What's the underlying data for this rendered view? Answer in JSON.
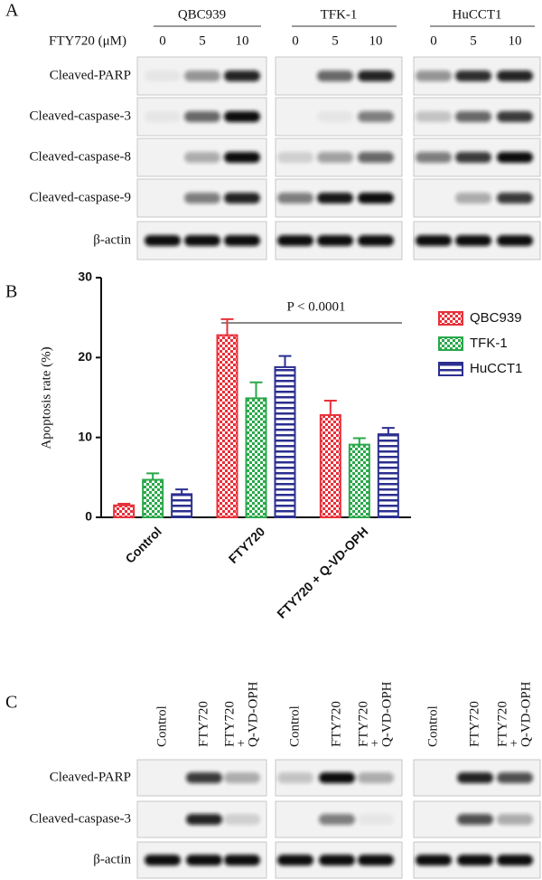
{
  "panel_a": {
    "label": "A",
    "cell_lines": [
      "QBC939",
      "TFK-1",
      "HuCCT1"
    ],
    "dose_label": "FTY720 (μM)",
    "doses": [
      "0",
      "5",
      "10"
    ],
    "rows": [
      "Cleaved-PARP",
      "Cleaved-caspase-3",
      "Cleaved-caspase-8",
      "Cleaved-caspase-9",
      "β-actin"
    ]
  },
  "chart_data": {
    "type": "bar",
    "panel_label": "B",
    "y_label": "Apoptosis rate (%)",
    "annotation": "P < 0.0001",
    "categories": [
      "Control",
      "FTY720",
      "FTY720 + Q-VD-OPH"
    ],
    "series": [
      {
        "name": "QBC939",
        "color": "#e8303a",
        "pattern": "checker",
        "values": [
          1.5,
          22.8,
          12.8
        ],
        "errors": [
          0.2,
          2.0,
          1.8
        ]
      },
      {
        "name": "TFK-1",
        "color": "#2aa84a",
        "pattern": "checker",
        "values": [
          4.7,
          14.9,
          9.1
        ],
        "errors": [
          0.8,
          2.0,
          0.8
        ]
      },
      {
        "name": "HuCCT1",
        "color": "#2b2f8f",
        "pattern": "stripes",
        "values": [
          2.9,
          18.8,
          10.4
        ],
        "errors": [
          0.6,
          1.4,
          0.8
        ]
      }
    ],
    "ylim": [
      0,
      30
    ],
    "yticks": [
      0,
      10,
      20,
      30
    ],
    "legend": "upper right"
  },
  "panel_c": {
    "label": "C",
    "lanes": [
      [
        "Control"
      ],
      [
        "FTY720"
      ],
      [
        "FTY720",
        "+",
        "Q-VD-OPH"
      ]
    ],
    "rows": [
      "Cleaved-PARP",
      "Cleaved-caspase-3",
      "β-actin"
    ]
  }
}
